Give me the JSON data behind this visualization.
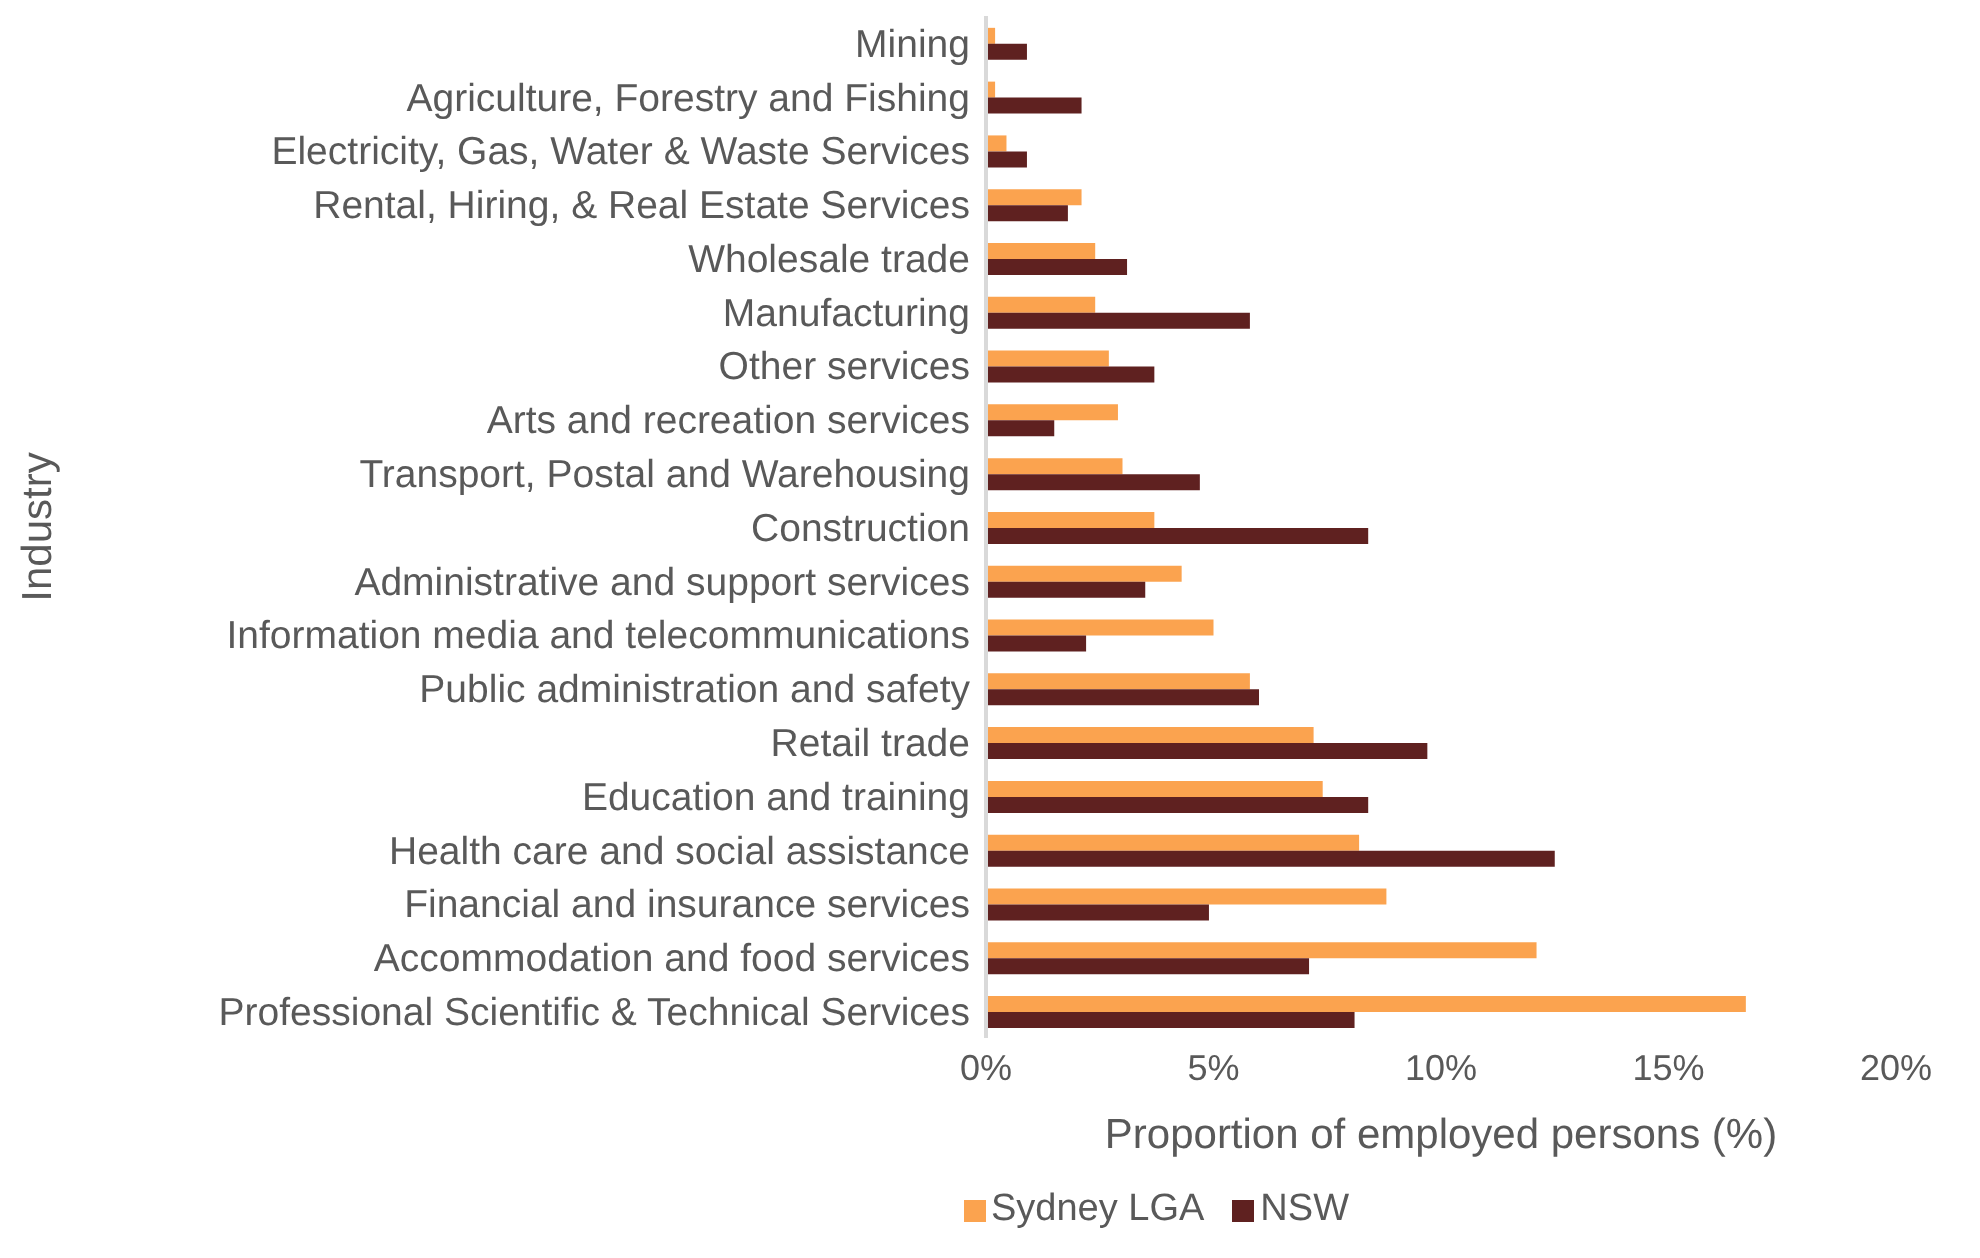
{
  "chart_data": {
    "type": "bar",
    "orientation": "horizontal",
    "ylabel": "Industry",
    "xlabel": "Proportion of employed persons (%)",
    "categories": [
      "Mining",
      "Agriculture, Forestry and Fishing",
      "Electricity, Gas, Water & Waste Services",
      "Rental, Hiring, & Real Estate Services",
      "Wholesale trade",
      "Manufacturing",
      "Other services",
      "Arts and recreation services",
      "Transport, Postal and Warehousing",
      "Construction",
      "Administrative and support services",
      "Information media and telecommunications",
      "Public administration and safety",
      "Retail trade",
      "Education and training",
      "Health care and social assistance",
      "Financial and insurance services",
      "Accommodation and food services",
      "Professional Scientific & Technical Services"
    ],
    "series": [
      {
        "name": "Sydney LGA",
        "color": "#fba34f",
        "values": [
          0.2,
          0.2,
          0.45,
          2.1,
          2.4,
          2.4,
          2.7,
          2.9,
          3.0,
          3.7,
          4.3,
          5.0,
          5.8,
          7.2,
          7.4,
          8.2,
          8.8,
          12.1,
          16.7
        ]
      },
      {
        "name": "NSW",
        "color": "#5f2120",
        "values": [
          0.9,
          2.1,
          0.9,
          1.8,
          3.1,
          5.8,
          3.7,
          1.5,
          4.7,
          8.4,
          3.5,
          2.2,
          6.0,
          9.7,
          8.4,
          12.5,
          4.9,
          7.1,
          8.1
        ]
      }
    ],
    "xlim": [
      0,
      20
    ],
    "xticks": [
      {
        "value": 0,
        "label": "0%"
      },
      {
        "value": 5,
        "label": "5%"
      },
      {
        "value": 10,
        "label": "10%"
      },
      {
        "value": 15,
        "label": "15%"
      },
      {
        "value": 20,
        "label": "20%"
      }
    ],
    "grid": false,
    "legend": "bottom"
  }
}
